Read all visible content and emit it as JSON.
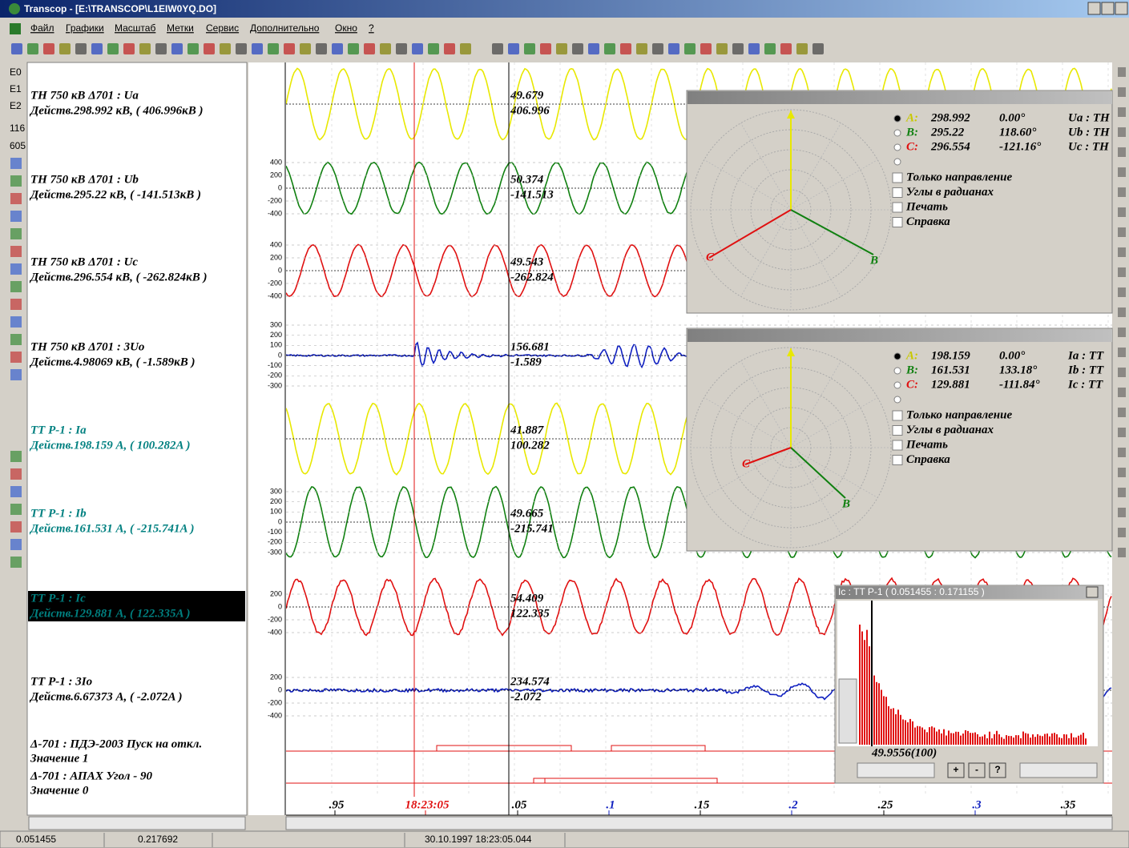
{
  "window": {
    "title": "Transcop - [E:\\TRANSCOP\\L1EIW0YQ.DO]"
  },
  "menu": [
    "Файл",
    "Графики",
    "Масштаб",
    "Метки",
    "Сервис",
    "Дополнительно",
    "Окно",
    "?"
  ],
  "left_toolbar": [
    "E0",
    "E1",
    "E2",
    "116",
    "605"
  ],
  "channels": [
    {
      "name": "ТН 750 кВ Δ701 : Ua",
      "value": "Действ.298.992 кВ, ( 406.996кВ )",
      "cursor": [
        "49.679",
        "406.996"
      ],
      "ticks": []
    },
    {
      "name": "ТН 750 кВ Δ701 : Ub",
      "value": "Действ.295.22 кВ, ( -141.513кВ )",
      "cursor": [
        "50.374",
        "-141.513"
      ],
      "ticks": [
        400,
        200,
        0,
        -200,
        -400
      ]
    },
    {
      "name": "ТН 750 кВ Δ701 : Uc",
      "value": "Действ.296.554 кВ, ( -262.824кВ )",
      "cursor": [
        "49.543",
        "-262.824"
      ],
      "ticks": [
        400,
        200,
        0,
        -200,
        -400
      ]
    },
    {
      "name": "ТН 750 кВ Δ701 : 3Uo",
      "value": "Действ.4.98069 кВ, ( -1.589кВ )",
      "cursor": [
        "156.681",
        "-1.589"
      ],
      "ticks": [
        300,
        200,
        100,
        0,
        -100,
        -200,
        -300
      ]
    },
    {
      "name": "ТТ Р-1 : Ia",
      "value": "Действ.198.159 A, ( 100.282A )",
      "cursor": [
        "41.887",
        "100.282"
      ],
      "ticks": []
    },
    {
      "name": "ТТ Р-1 : Ib",
      "value": "Действ.161.531 A, ( -215.741A )",
      "cursor": [
        "49.665",
        "-215.741"
      ],
      "ticks": [
        300,
        200,
        100,
        0,
        -100,
        -200,
        -300
      ]
    },
    {
      "name": "ТТ Р-1 : Ic",
      "value": "Действ.129.881 A, ( 122.335A )",
      "cursor": [
        "54.409",
        "122.335"
      ],
      "ticks": [
        200,
        0,
        -200,
        -400
      ]
    },
    {
      "name": "ТТ Р-1 : 3Io",
      "value": "Действ.6.67373 A, ( -2.072A )",
      "cursor": [
        "234.574",
        "-2.072"
      ],
      "ticks": [
        200,
        0,
        -200,
        -400
      ]
    }
  ],
  "discrete": [
    {
      "name": "Δ-701 : ПДЭ-2003 Пуск на откл.",
      "value": "Значение 1"
    },
    {
      "name": "Δ-701 : АПАХ Угол - 90",
      "value": "Значение 0"
    }
  ],
  "time_axis": [
    ".95",
    "18:23:05",
    ".05",
    ".1",
    ".15",
    ".2",
    ".25",
    ".3",
    ".35"
  ],
  "vector_panels": [
    {
      "rows": [
        [
          "A:",
          "298.992",
          "0.00°",
          "Ua : TH"
        ],
        [
          "B:",
          "295.22",
          "118.60°",
          "Ub : TH"
        ],
        [
          "C:",
          "296.554",
          "-121.16°",
          "Uc : TH"
        ]
      ],
      "labels": [
        "C",
        "B"
      ]
    },
    {
      "rows": [
        [
          "A:",
          "198.159",
          "0.00°",
          "Ia : TT"
        ],
        [
          "B:",
          "161.531",
          "133.18°",
          "Ib : TT"
        ],
        [
          "C:",
          "129.881",
          "-111.84°",
          "Ic : TT"
        ]
      ],
      "labels": [
        "C",
        "B"
      ]
    }
  ],
  "vector_options": [
    "Только направление",
    "Углы в радианах",
    "Печать",
    "Справка"
  ],
  "spectrum": {
    "title": "Ic : TT P-1  ( 0.051455 : 0.171155 )",
    "value": "49.9556(100)",
    "buttons": [
      "+",
      "-",
      "?"
    ]
  },
  "status": [
    "0.051455",
    "0.217692",
    "30.10.1997  18:23:05.044"
  ]
}
